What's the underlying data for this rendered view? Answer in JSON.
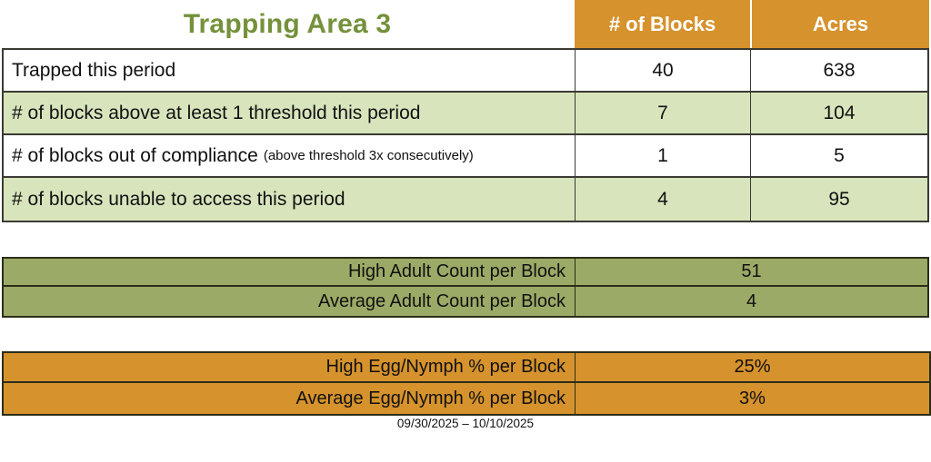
{
  "title": "Trapping Area 3",
  "period": "09/30/2025 – 10/10/2025",
  "colors": {
    "title-green": "#75913B",
    "orange": "#D6922C",
    "light-green": "#D8E4BC",
    "mid-olive": "#9BAA66"
  },
  "main_table": {
    "columns": {
      "blocks": "# of Blocks",
      "acres": "Acres"
    },
    "rows": [
      {
        "label": "Trapped this period",
        "note": "",
        "blocks": "40",
        "acres": "638"
      },
      {
        "label": "# of blocks above at least 1 threshold this period",
        "note": "",
        "blocks": "7",
        "acres": "104"
      },
      {
        "label": "# of blocks out of compliance",
        "note": "(above threshold 3x consecutively)",
        "blocks": "1",
        "acres": "5"
      },
      {
        "label": "# of blocks unable to access this period",
        "note": "",
        "blocks": "4",
        "acres": "95"
      }
    ]
  },
  "adult_table": {
    "rows": [
      {
        "label": "High Adult Count per Block",
        "value": "51"
      },
      {
        "label": "Average Adult Count per Block",
        "value": "4"
      }
    ]
  },
  "egg_table": {
    "rows": [
      {
        "label": "High Egg/Nymph % per Block",
        "value": "25%"
      },
      {
        "label": "Average Egg/Nymph % per Block",
        "value": "3%"
      }
    ]
  }
}
